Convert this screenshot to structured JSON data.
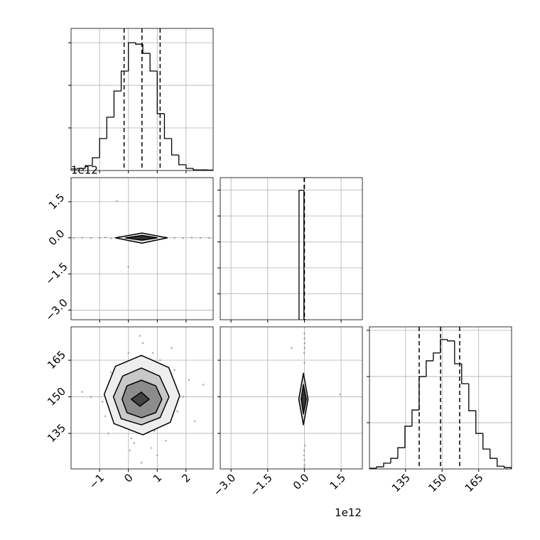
{
  "chart_data": [
    {
      "type": "histogram",
      "color": "#000000",
      "grid": true,
      "bins": [
        -2.0,
        -1.75,
        -1.5,
        -1.25,
        -1.0,
        -0.75,
        -0.5,
        -0.25,
        0.0,
        0.25,
        0.5,
        0.75,
        1.0,
        1.25,
        1.5,
        1.75,
        2.0,
        2.25,
        2.5,
        2.75,
        3.0
      ],
      "counts": [
        7,
        10,
        23,
        60,
        150,
        250,
        373,
        467,
        600,
        593,
        550,
        467,
        267,
        150,
        73,
        27,
        10,
        3,
        3,
        2
      ],
      "quantiles": [
        -0.15,
        0.47,
        1.1
      ],
      "xlim": [
        -1.99,
        2.94
      ],
      "ylim": [
        0,
        667
      ],
      "xticks": [
        -1,
        0,
        1,
        2
      ],
      "yticks": [
        200,
        400,
        600
      ],
      "xtick_labels": false,
      "ytick_labels": false
    },
    {
      "type": "scatter",
      "grid": true,
      "point_color": "#808080",
      "color": "#000000",
      "x": [
        -1.9,
        -1.6,
        -1.3,
        -1.0,
        -0.8,
        -0.6,
        -0.3,
        0.1,
        0.5,
        0.9,
        1.3,
        1.6,
        1.9,
        2.2,
        2.5,
        2.8,
        -0.4,
        0.0
      ],
      "y": [
        0,
        0.01,
        -0.01,
        0,
        0.02,
        -0.02,
        0.04,
        -0.05,
        0.06,
        -0.04,
        0.02,
        0,
        -0.01,
        0.01,
        0,
        0,
        1.53,
        -1.2
      ],
      "contours": [
        {
          "fill": "#e6e6e6",
          "x": [
            1.35,
            0.47,
            -0.45,
            0.47
          ],
          "y": [
            0,
            0.2,
            0,
            -0.22
          ]
        },
        {
          "fill": "#333333",
          "x": [
            1.0,
            0.47,
            -0.1,
            0.47
          ],
          "y": [
            0,
            0.1,
            0,
            -0.1
          ]
        }
      ],
      "xlim": [
        -1.99,
        2.94
      ],
      "ylim": [
        -3.4,
        2.5
      ],
      "xticks": [
        -1,
        0,
        1,
        2
      ],
      "yticks": [
        {
          "value": -3,
          "label": "−3.0"
        },
        {
          "value": -1.5,
          "label": "−1.5"
        },
        {
          "value": 0,
          "label": "0.0"
        },
        1.5
      ],
      "xtick_labels": false,
      "ytick_labels": true,
      "y_offset_label": "1e12"
    },
    {
      "type": "histogram",
      "color": "#000000",
      "grid": true,
      "bins": [
        -0.22,
        -0.02,
        0.02
      ],
      "counts": [
        4990,
        10
      ],
      "quantiles": [
        -0.01,
        -0.005,
        0.0
      ],
      "xlim": [
        -3.44,
        2.37
      ],
      "ylim": [
        0,
        5480
      ],
      "xticks": [
        -3,
        -1.5,
        0,
        1.5
      ],
      "yticks": [
        1000,
        2000,
        3000,
        4000,
        5000
      ],
      "xtick_labels": false,
      "ytick_labels": false
    },
    {
      "type": "scatter",
      "grid": true,
      "point_color": "#808080",
      "color": "#000000",
      "x": [
        -0.9,
        -0.6,
        -0.3,
        0.0,
        0.2,
        0.5,
        0.8,
        1.1,
        1.4,
        1.7,
        2.1,
        -1.3,
        -0.1,
        0.6,
        0.9,
        1.2,
        0.3,
        -0.5,
        0.1,
        0.7,
        1.5,
        -0.8,
        0.4,
        1.0,
        1.9,
        -0.2,
        0.55,
        0.35,
        1.3,
        -0.4,
        2.3,
        -1.6,
        0.05,
        0.85,
        1.6,
        -0.7,
        0.45,
        0.15,
        1.05,
        2.6
      ],
      "y": [
        148,
        160,
        139,
        168,
        131,
        172,
        129,
        165,
        153,
        144,
        157,
        150,
        145,
        158,
        136,
        147,
        162,
        154,
        133,
        141,
        170,
        142,
        175,
        126,
        150,
        163,
        138,
        155,
        132,
        146,
        140,
        152,
        128,
        168,
        161,
        135,
        123,
        157,
        144,
        155
      ],
      "contours": [
        {
          "fill": "#eeeeee",
          "x": [
            1.78,
            1.4,
            0.45,
            -0.45,
            -0.84,
            -0.5,
            0.5,
            1.45
          ],
          "y": [
            150.5,
            162.0,
            167.0,
            162.5,
            151,
            139,
            134.4,
            139.5
          ]
        },
        {
          "fill": "#c8c8c8",
          "x": [
            1.41,
            1.08,
            0.45,
            -0.2,
            -0.52,
            -0.25,
            0.45,
            1.1
          ],
          "y": [
            150,
            158.5,
            161.8,
            158.5,
            150,
            141,
            138.5,
            141.5
          ]
        },
        {
          "fill": "#8c8c8c",
          "x": [
            1.16,
            0.95,
            0.45,
            -0.05,
            -0.22,
            -0.05,
            0.45,
            0.95
          ],
          "y": [
            149,
            154.5,
            156.8,
            154.5,
            149,
            143.5,
            141.4,
            143.5
          ]
        },
        {
          "fill": "#444444",
          "x": [
            0.72,
            0.45,
            0.1,
            0.4
          ],
          "y": [
            149,
            151.9,
            149,
            146.1
          ]
        }
      ],
      "xlim": [
        -1.99,
        2.94
      ],
      "ylim": [
        120.4,
        178.7
      ],
      "xticks": [
        {
          "value": -1,
          "label": "−1"
        },
        0,
        1,
        2
      ],
      "yticks": [
        135,
        150,
        165
      ],
      "xtick_labels": true,
      "ytick_labels": true
    },
    {
      "type": "scatter",
      "grid": true,
      "point_color": "#808080",
      "color": "#000000",
      "x": [
        0,
        0.01,
        -0.01,
        0,
        0.02,
        -0.02,
        0,
        0.01,
        -0.01,
        0,
        -0.52,
        1.46,
        0,
        0.01
      ],
      "y": [
        176,
        172,
        168,
        164,
        130,
        126,
        122,
        170,
        128,
        124,
        170,
        151,
        121,
        174
      ],
      "contours": [
        {
          "fill": "#d0d0d0",
          "x": [
            0.15,
            -0.04,
            -0.23,
            -0.04
          ],
          "y": [
            149,
            159.7,
            149,
            138.5
          ]
        },
        {
          "fill": "#333333",
          "x": [
            0.08,
            -0.04,
            -0.13,
            -0.04
          ],
          "y": [
            149,
            155,
            149,
            143
          ]
        }
      ],
      "xlim": [
        -3.44,
        2.37
      ],
      "ylim": [
        120.4,
        178.7
      ],
      "xticks": [
        {
          "value": -3,
          "label": "−3.0"
        },
        {
          "value": -1.5,
          "label": "−1.5"
        },
        {
          "value": 0,
          "label": "0.0"
        },
        1.5
      ],
      "yticks": [
        135,
        150,
        165
      ],
      "xtick_labels": true,
      "ytick_labels": false,
      "x_offset_label": "1e12"
    },
    {
      "type": "histogram",
      "color": "#000000",
      "grid": true,
      "bins": [
        120.2,
        123.11,
        126.02,
        128.93,
        131.84,
        134.75,
        137.66,
        140.57,
        143.48,
        146.39,
        149.3,
        152.21,
        155.12,
        158.03,
        160.94,
        163.85,
        166.76,
        169.67,
        172.58,
        175.49,
        178.4
      ],
      "counts": [
        3,
        9,
        25,
        46,
        92,
        185,
        255,
        400,
        468,
        502,
        560,
        554,
        455,
        369,
        252,
        154,
        86,
        46,
        12,
        6
      ],
      "quantiles": [
        140.6,
        149.35,
        157.2
      ],
      "xlim": [
        120.2,
        178.5
      ],
      "ylim": [
        0,
        615
      ],
      "xticks": [
        135,
        150,
        165
      ],
      "yticks": [
        200,
        400,
        600
      ],
      "xtick_labels": true,
      "ytick_labels": false
    }
  ]
}
